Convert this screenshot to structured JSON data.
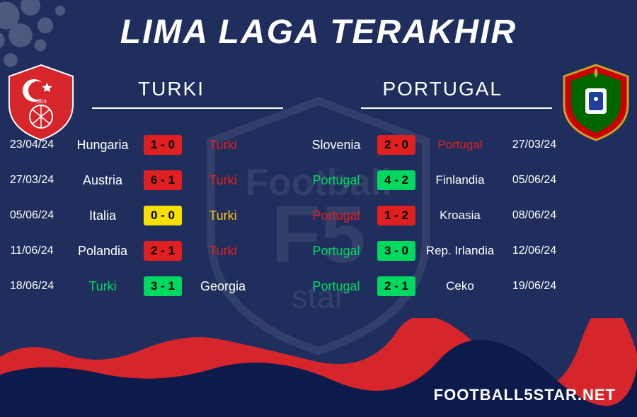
{
  "title": "LIMA LAGA TERAKHIR",
  "footer": "FOOTBALL5STAR.NET",
  "colors": {
    "background": "#1f2e5c",
    "text": "#ffffff",
    "win": "#00d960",
    "loss": "#e02020",
    "draw_text": "#f5c518",
    "score_win_bg": "#00d960",
    "score_loss_bg": "#e02020",
    "score_draw_bg": "#f5e000",
    "wave_red": "#d7262b",
    "wave_blue": "#0d1b4c",
    "crest_left_fill": "#d7262b",
    "crest_right_green": "#006600",
    "crest_right_red": "#cc0000"
  },
  "teams": {
    "left": {
      "name": "TURKI",
      "crest_label": "turkey-crest"
    },
    "right": {
      "name": "PORTUGAL",
      "crest_label": "portugal-crest"
    }
  },
  "matches_left": [
    {
      "date": "23/04/24",
      "home": "Hungaria",
      "score": "1 - 0",
      "away": "Turki",
      "focus_result": "loss",
      "focus_side": "away"
    },
    {
      "date": "27/03/24",
      "home": "Austria",
      "score": "6 - 1",
      "away": "Turki",
      "focus_result": "loss",
      "focus_side": "away"
    },
    {
      "date": "05/06/24",
      "home": "Italia",
      "score": "0 - 0",
      "away": "Turki",
      "focus_result": "draw",
      "focus_side": "away"
    },
    {
      "date": "11/06/24",
      "home": "Polandia",
      "score": "2 - 1",
      "away": "Turki",
      "focus_result": "loss",
      "focus_side": "away"
    },
    {
      "date": "18/06/24",
      "home": "Turki",
      "score": "3 - 1",
      "away": "Georgia",
      "focus_result": "win",
      "focus_side": "home"
    }
  ],
  "matches_right": [
    {
      "date": "27/03/24",
      "home": "Slovenia",
      "score": "2 - 0",
      "away": "Portugal",
      "focus_result": "loss",
      "focus_side": "away"
    },
    {
      "date": "05/06/24",
      "home": "Portugal",
      "score": "4 - 2",
      "away": "Finlandia",
      "focus_result": "win",
      "focus_side": "home"
    },
    {
      "date": "08/06/24",
      "home": "Portugal",
      "score": "1 - 2",
      "away": "Kroasia",
      "focus_result": "loss",
      "focus_side": "home"
    },
    {
      "date": "12/06/24",
      "home": "Portugal",
      "score": "3 - 0",
      "away": "Rep. Irlandia",
      "focus_result": "win",
      "focus_side": "home"
    },
    {
      "date": "19/06/24",
      "home": "Portugal",
      "score": "2 - 1",
      "away": "Ceko",
      "focus_result": "win",
      "focus_side": "home"
    }
  ]
}
